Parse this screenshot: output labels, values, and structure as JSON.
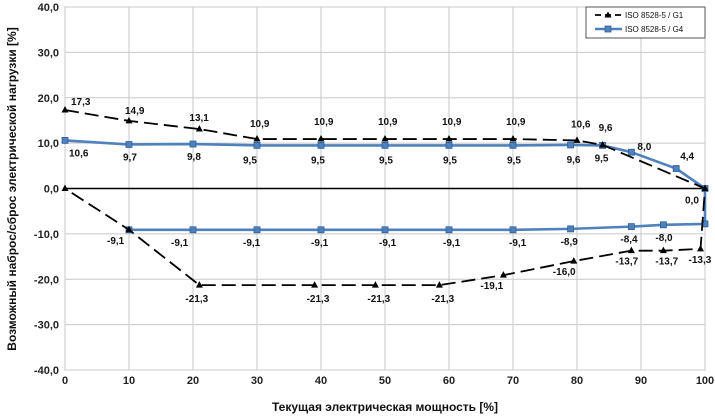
{
  "chart_data": {
    "type": "line",
    "xlabel": "Текущая электрическая мощность [%]",
    "ylabel": "Возможный наброс/сброс электрической нагрузки [%]",
    "xlim": [
      0,
      100
    ],
    "ylim": [
      -40,
      40
    ],
    "x_ticks": [
      0,
      10,
      20,
      30,
      40,
      50,
      60,
      70,
      80,
      90,
      100
    ],
    "x_tick_labels": [
      "0",
      "10",
      "20",
      "30",
      "40",
      "50",
      "60",
      "70",
      "80",
      "90",
      "100"
    ],
    "y_ticks": [
      40,
      30,
      20,
      10,
      0,
      -10,
      -20,
      -30,
      -40
    ],
    "y_tick_labels": [
      "40,0",
      "30,0",
      "20,0",
      "10,0",
      "0,0",
      "-10,0",
      "-20,0",
      "-30,0",
      "-40,0"
    ],
    "grid": true,
    "legend_position": "top-right",
    "series": [
      {
        "name": "ISO 8528-5 / G1",
        "color": "#000000",
        "line_style": "dashed",
        "marker": "triangle",
        "x": [
          0,
          10,
          21,
          30,
          40,
          50,
          60,
          70,
          80,
          84,
          100,
          99.3,
          93.5,
          88.5,
          79.5,
          68.5,
          58.5,
          48.5,
          39,
          21,
          10,
          0
        ],
        "y": [
          17.3,
          14.9,
          13.1,
          10.9,
          10.9,
          10.9,
          10.9,
          10.9,
          10.6,
          9.6,
          0.0,
          -13.3,
          -13.7,
          -13.7,
          -16.0,
          -19.1,
          -21.3,
          -21.3,
          -21.3,
          -21.3,
          -9.1,
          0.0
        ]
      },
      {
        "name": "ISO 8528-5 / G4",
        "color": "#4f81bd",
        "line_style": "solid",
        "marker": "square",
        "x": [
          0,
          10,
          20,
          30,
          40,
          50,
          60,
          70,
          79,
          84,
          88.5,
          95.5,
          100,
          100,
          93.5,
          88.5,
          79,
          70,
          60,
          50,
          40,
          30,
          20,
          10
        ],
        "y": [
          10.6,
          9.7,
          9.8,
          9.5,
          9.5,
          9.5,
          9.5,
          9.5,
          9.6,
          9.5,
          8.0,
          4.4,
          0.0,
          -7.8,
          -8.0,
          -8.4,
          -8.9,
          -9.1,
          -9.1,
          -9.1,
          -9.1,
          -9.1,
          -9.1,
          -9.1
        ]
      }
    ],
    "data_labels": [
      {
        "text": "17,3",
        "x": 0,
        "y": 17.3,
        "dx": 6,
        "dy": -5
      },
      {
        "text": "14,9",
        "x": 10,
        "y": 14.9,
        "dx": -4,
        "dy": -7
      },
      {
        "text": "13,1",
        "x": 21,
        "y": 13.1,
        "dx": -10,
        "dy": -8
      },
      {
        "text": "10,9",
        "x": 30,
        "y": 10.9,
        "dx": -7,
        "dy": -12
      },
      {
        "text": "10,9",
        "x": 40,
        "y": 10.9,
        "dx": -7,
        "dy": -14
      },
      {
        "text": "10,9",
        "x": 50,
        "y": 10.9,
        "dx": -7,
        "dy": -14
      },
      {
        "text": "10,9",
        "x": 60,
        "y": 10.9,
        "dx": -7,
        "dy": -14
      },
      {
        "text": "10,9",
        "x": 70,
        "y": 10.9,
        "dx": -7,
        "dy": -14
      },
      {
        "text": "10,6",
        "x": 80,
        "y": 10.6,
        "dx": -6,
        "dy": -13
      },
      {
        "text": "9,6",
        "x": 84,
        "y": 9.6,
        "dx": -4,
        "dy": -14
      },
      {
        "text": "10,6",
        "x": 0,
        "y": 10.6,
        "dx": 4,
        "dy": 16
      },
      {
        "text": "9,7",
        "x": 10,
        "y": 9.7,
        "dx": -6,
        "dy": 16
      },
      {
        "text": "9,8",
        "x": 20,
        "y": 9.8,
        "dx": -6,
        "dy": 16
      },
      {
        "text": "9,5",
        "x": 30,
        "y": 9.5,
        "dx": -14,
        "dy": 18
      },
      {
        "text": "9,5",
        "x": 40,
        "y": 9.5,
        "dx": -10,
        "dy": 18
      },
      {
        "text": "9,5",
        "x": 50,
        "y": 9.5,
        "dx": -6,
        "dy": 18
      },
      {
        "text": "9,5",
        "x": 60,
        "y": 9.5,
        "dx": -6,
        "dy": 18
      },
      {
        "text": "9,5",
        "x": 70,
        "y": 9.5,
        "dx": -6,
        "dy": 18
      },
      {
        "text": "9,6",
        "x": 79,
        "y": 9.6,
        "dx": -4,
        "dy": 18
      },
      {
        "text": "9,5",
        "x": 84,
        "y": 9.5,
        "dx": -8,
        "dy": 16
      },
      {
        "text": "8,0",
        "x": 88.5,
        "y": 8.0,
        "dx": 6,
        "dy": -2
      },
      {
        "text": "4,4",
        "x": 95.5,
        "y": 4.4,
        "dx": 4,
        "dy": -9
      },
      {
        "text": "0,0",
        "x": 100,
        "y": 0.0,
        "dx": -20,
        "dy": 15
      },
      {
        "text": "-9,1",
        "x": 10,
        "y": -9.1,
        "dx": -22,
        "dy": 14
      },
      {
        "text": "-9,1",
        "x": 20,
        "y": -9.1,
        "dx": -22,
        "dy": 16
      },
      {
        "text": "-9,1",
        "x": 30,
        "y": -9.1,
        "dx": -14,
        "dy": 16
      },
      {
        "text": "-9,1",
        "x": 40,
        "y": -9.1,
        "dx": -10,
        "dy": 16
      },
      {
        "text": "-9,1",
        "x": 50,
        "y": -9.1,
        "dx": -6,
        "dy": 16
      },
      {
        "text": "-9,1",
        "x": 60,
        "y": -9.1,
        "dx": -6,
        "dy": 16
      },
      {
        "text": "-9,1",
        "x": 70,
        "y": -9.1,
        "dx": -4,
        "dy": 16
      },
      {
        "text": "-8,9",
        "x": 79,
        "y": -8.9,
        "dx": -10,
        "dy": 16
      },
      {
        "text": "-8,4",
        "x": 88.5,
        "y": -8.4,
        "dx": -11,
        "dy": 16
      },
      {
        "text": "-8,0",
        "x": 93.5,
        "y": -8.0,
        "dx": -8,
        "dy": 16
      },
      {
        "text": "-13,7",
        "x": 88.5,
        "y": -13.7,
        "dx": -16,
        "dy": 14
      },
      {
        "text": "-13,7",
        "x": 93.5,
        "y": -13.7,
        "dx": -8,
        "dy": 14
      },
      {
        "text": "-13,3",
        "x": 99.3,
        "y": -13.3,
        "dx": -12,
        "dy": 14
      },
      {
        "text": "-16,0",
        "x": 79.5,
        "y": -16.0,
        "dx": -21,
        "dy": 14
      },
      {
        "text": "-19,1",
        "x": 68.5,
        "y": -19.1,
        "dx": -23,
        "dy": 14
      },
      {
        "text": "-21,3",
        "x": 21,
        "y": -21.3,
        "dx": -14,
        "dy": 17
      },
      {
        "text": "-21,3",
        "x": 39,
        "y": -21.3,
        "dx": -8,
        "dy": 17
      },
      {
        "text": "-21,3",
        "x": 48.5,
        "y": -21.3,
        "dx": -8,
        "dy": 17
      },
      {
        "text": "-21,3",
        "x": 58.5,
        "y": -21.3,
        "dx": -8,
        "dy": 17
      }
    ]
  }
}
